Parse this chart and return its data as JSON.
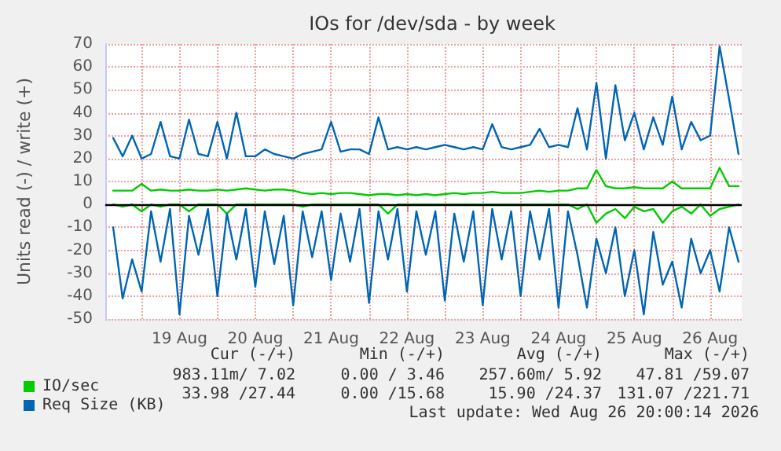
{
  "chart_data": {
    "type": "line",
    "title": "IOs for /dev/sda - by week",
    "ylabel": "Units read (-) / write (+)",
    "x": [
      "2026-08-18T15:00",
      "2026-08-18T18:00",
      "2026-08-18T21:00",
      "2026-08-19T00:00",
      "2026-08-19T03:00",
      "2026-08-19T06:00",
      "2026-08-19T09:00",
      "2026-08-19T12:00",
      "2026-08-19T15:00",
      "2026-08-19T18:00",
      "2026-08-19T21:00",
      "2026-08-20T00:00",
      "2026-08-20T03:00",
      "2026-08-20T06:00",
      "2026-08-20T09:00",
      "2026-08-20T12:00",
      "2026-08-20T15:00",
      "2026-08-20T18:00",
      "2026-08-20T21:00",
      "2026-08-21T00:00",
      "2026-08-21T03:00",
      "2026-08-21T06:00",
      "2026-08-21T09:00",
      "2026-08-21T12:00",
      "2026-08-21T15:00",
      "2026-08-21T18:00",
      "2026-08-21T21:00",
      "2026-08-22T00:00",
      "2026-08-22T03:00",
      "2026-08-22T06:00",
      "2026-08-22T09:00",
      "2026-08-22T12:00",
      "2026-08-22T15:00",
      "2026-08-22T18:00",
      "2026-08-22T21:00",
      "2026-08-23T00:00",
      "2026-08-23T03:00",
      "2026-08-23T06:00",
      "2026-08-23T09:00",
      "2026-08-23T12:00",
      "2026-08-23T15:00",
      "2026-08-23T18:00",
      "2026-08-23T21:00",
      "2026-08-24T00:00",
      "2026-08-24T03:00",
      "2026-08-24T06:00",
      "2026-08-24T09:00",
      "2026-08-24T12:00",
      "2026-08-24T15:00",
      "2026-08-24T18:00",
      "2026-08-24T21:00",
      "2026-08-25T00:00",
      "2026-08-25T03:00",
      "2026-08-25T06:00",
      "2026-08-25T09:00",
      "2026-08-25T12:00",
      "2026-08-25T15:00",
      "2026-08-25T18:00",
      "2026-08-25T21:00",
      "2026-08-26T00:00",
      "2026-08-26T03:00",
      "2026-08-26T06:00",
      "2026-08-26T09:00",
      "2026-08-26T12:00",
      "2026-08-26T15:00",
      "2026-08-26T18:00",
      "2026-08-26T21:00"
    ],
    "series": [
      {
        "name": "IO/sec",
        "color": "#00cc00",
        "values": [
          6,
          6,
          6,
          9,
          6,
          6.5,
          6,
          6,
          6.5,
          6,
          6,
          6.5,
          6,
          6.5,
          7,
          6.5,
          6,
          6.5,
          6.5,
          6,
          5,
          4.5,
          5,
          4.5,
          5,
          5,
          4.5,
          4,
          4.5,
          4.5,
          4,
          4.5,
          4,
          4.5,
          4,
          4.5,
          5,
          4.5,
          5,
          5,
          5.5,
          5,
          5,
          5,
          5.5,
          6,
          5.5,
          6,
          6,
          7,
          7,
          15,
          8,
          7,
          7,
          7.5,
          7,
          7,
          7,
          10,
          7,
          7,
          7,
          7,
          16,
          8,
          8
        ]
      },
      {
        "name": "Req Size (KB)",
        "color": "#0066b3",
        "values": [
          29,
          21,
          30,
          20,
          22,
          36,
          21,
          20,
          37,
          22,
          21,
          36,
          20,
          40,
          21,
          21,
          24,
          22,
          21,
          20,
          22,
          23,
          24,
          36,
          23,
          24,
          24,
          22,
          38,
          24,
          25,
          24,
          25,
          24,
          25,
          26,
          25,
          24,
          25,
          24,
          35,
          25,
          24,
          25,
          26,
          33,
          25,
          26,
          25,
          42,
          24,
          53,
          20,
          52,
          28,
          40,
          24,
          38,
          26,
          47,
          24,
          36,
          28,
          30,
          69,
          46,
          22
        ]
      },
      {
        "color": "#00cc00",
        "values": [
          0,
          -1,
          0,
          -3,
          0,
          -1,
          0,
          0,
          -3,
          0,
          0,
          0,
          -4,
          0,
          0,
          0,
          0,
          0,
          0,
          0,
          -1,
          0,
          0,
          0,
          0,
          0,
          0,
          0,
          0,
          -4,
          0,
          0,
          0,
          0,
          0,
          0,
          0,
          0,
          0,
          0,
          0,
          0,
          0,
          0,
          0,
          0,
          0,
          0,
          0,
          -2,
          0,
          -8,
          -4,
          -2,
          -6,
          -1,
          -3,
          -2,
          -8,
          -3,
          -1,
          -4,
          0,
          -5,
          -2,
          -1,
          0
        ]
      },
      {
        "color": "#0066b3",
        "values": [
          -10,
          -41,
          -24,
          -38,
          -3,
          -25,
          -2,
          -48,
          -5,
          -22,
          -2,
          -40,
          -4,
          -24,
          -2,
          -36,
          -3,
          -26,
          -5,
          -44,
          -3,
          -23,
          -3,
          -33,
          -4,
          -25,
          -2,
          -43,
          -3,
          -24,
          -2,
          -38,
          -3,
          -22,
          -3,
          -42,
          -4,
          -25,
          -3,
          -44,
          -2,
          -24,
          -3,
          -40,
          -3,
          -24,
          -2,
          -45,
          -3,
          -22,
          -45,
          -15,
          -30,
          -10,
          -40,
          -20,
          -48,
          -12,
          -35,
          -25,
          -45,
          -15,
          -30,
          -20,
          -38,
          -10,
          -25
        ]
      }
    ],
    "xlim": [
      "2026-08-18T12:30",
      "2026-08-26T22:00"
    ],
    "xticks": [
      {
        "value": "2026-08-19T00:00",
        "label": null
      },
      {
        "value": "2026-08-19T12:00",
        "label": "19 Aug"
      },
      {
        "value": "2026-08-20T00:00",
        "label": null
      },
      {
        "value": "2026-08-20T12:00",
        "label": "20 Aug"
      },
      {
        "value": "2026-08-21T00:00",
        "label": null
      },
      {
        "value": "2026-08-21T12:00",
        "label": "21 Aug"
      },
      {
        "value": "2026-08-22T00:00",
        "label": null
      },
      {
        "value": "2026-08-22T12:00",
        "label": "22 Aug"
      },
      {
        "value": "2026-08-23T00:00",
        "label": null
      },
      {
        "value": "2026-08-23T12:00",
        "label": "23 Aug"
      },
      {
        "value": "2026-08-24T00:00",
        "label": null
      },
      {
        "value": "2026-08-24T12:00",
        "label": "24 Aug"
      },
      {
        "value": "2026-08-25T00:00",
        "label": null
      },
      {
        "value": "2026-08-25T12:00",
        "label": "25 Aug"
      },
      {
        "value": "2026-08-26T00:00",
        "label": null
      },
      {
        "value": "2026-08-26T12:00",
        "label": "26 Aug"
      }
    ],
    "ylim": [
      -50,
      70
    ],
    "yticks": [
      -50,
      -40,
      -30,
      -20,
      -10,
      0,
      10,
      20,
      30,
      40,
      50,
      60,
      70
    ],
    "ref_lines": [
      {
        "axis": "y",
        "value": 0,
        "color": "#000000"
      }
    ],
    "grid": true,
    "legend": "bottom left",
    "marker": "none",
    "line_style": "solid",
    "annotations": [
      "Cur (-/+)",
      "Min (-/+)",
      "Avg (-/+)",
      "Max (-/+)",
      "983.11m/ 7.02",
      "0.00 / 3.46",
      "257.60m/ 5.92",
      "47.81 /59.07",
      "33.98 /27.44",
      "0.00 /15.68",
      "15.90 /24.37",
      "131.07 /221.71",
      "Last update: Wed Aug 26 20:00:14 2026"
    ]
  }
}
